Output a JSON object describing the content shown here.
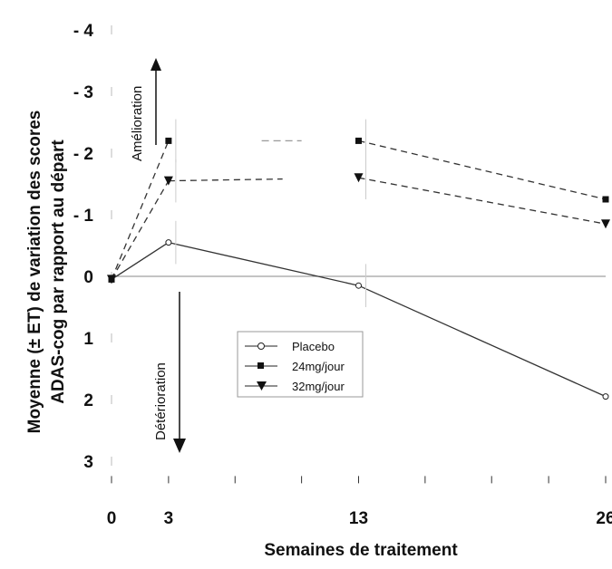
{
  "chart_data": {
    "type": "line",
    "xlabel": "Semaines de traitement",
    "ylabel_line1": "Moyenne (± ET) de variation des scores",
    "ylabel_line2": "ADAS-cog par rapport au départ",
    "x_ticks": [
      0,
      3,
      13,
      26
    ],
    "y_ticks": [
      -4,
      -3,
      -2,
      -1,
      0,
      1,
      2,
      3
    ],
    "y_tick_labels": [
      "- 4",
      "- 3",
      "- 2",
      "- 1",
      "0",
      "1",
      "2",
      "3"
    ],
    "ylim": [
      -4,
      3
    ],
    "y_inverted": true,
    "xlim": [
      0,
      26
    ],
    "annotations": {
      "improvement": "Amélioration",
      "deterioration": "Détérioration"
    },
    "legend_position": "center",
    "series": [
      {
        "name": "Placebo",
        "marker": "circle",
        "line": "solid",
        "x": [
          0,
          3,
          13,
          26
        ],
        "y": [
          0.05,
          -0.55,
          0.15,
          1.95
        ]
      },
      {
        "name": "24mg/jour",
        "marker": "square",
        "line": "dashed",
        "x": [
          0,
          3,
          13,
          26
        ],
        "y": [
          0.05,
          -2.2,
          -2.2,
          -1.25
        ]
      },
      {
        "name": "32mg/jour",
        "marker": "triangle-down",
        "line": "dashed",
        "x": [
          0,
          3,
          13,
          26
        ],
        "y": [
          0.05,
          -1.55,
          -1.6,
          -0.85
        ]
      }
    ]
  }
}
